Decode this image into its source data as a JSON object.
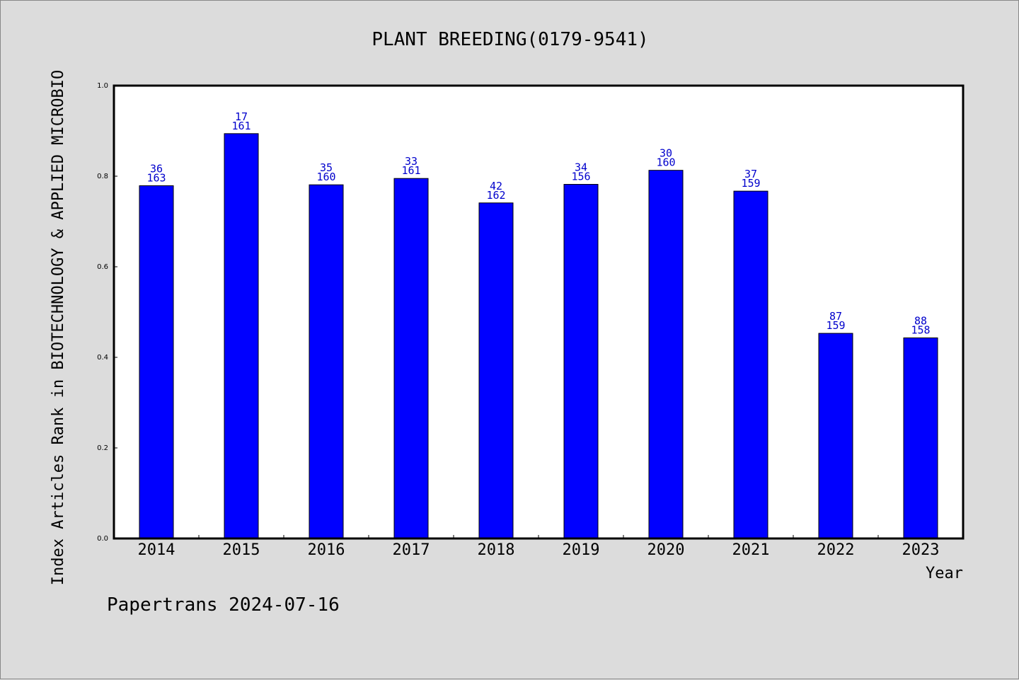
{
  "chart_data": {
    "type": "bar",
    "title": "PLANT BREEDING(0179-9541)",
    "xlabel": "Year",
    "ylabel": "Index Articles Rank in BIOTECHNOLOGY & APPLIED MICROBIO",
    "ylim": [
      0,
      1.0
    ],
    "yticks": [
      "0.0",
      "0.2",
      "0.4",
      "0.6",
      "0.8",
      "1.0"
    ],
    "categories": [
      "2014",
      "2015",
      "2016",
      "2017",
      "2018",
      "2019",
      "2020",
      "2021",
      "2022",
      "2023"
    ],
    "values": [
      0.779,
      0.894,
      0.781,
      0.795,
      0.741,
      0.782,
      0.813,
      0.767,
      0.453,
      0.443
    ],
    "ranks": [
      "36",
      "17",
      "35",
      "33",
      "42",
      "34",
      "30",
      "37",
      "87",
      "88"
    ],
    "totals": [
      "163",
      "161",
      "160",
      "161",
      "162",
      "156",
      "160",
      "159",
      "159",
      "158"
    ],
    "bar_color": "#0000ff",
    "label_color": "#0000cc",
    "grid": false,
    "legend": "none"
  },
  "footer": "Papertrans 2024-07-16"
}
